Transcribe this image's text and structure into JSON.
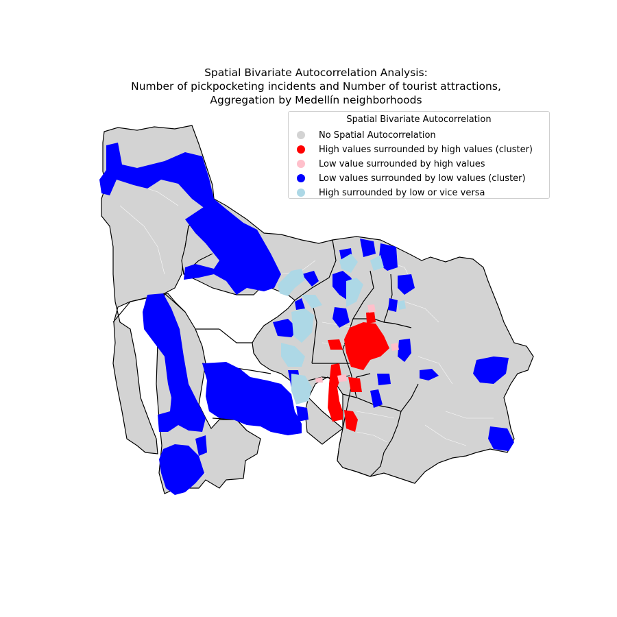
{
  "title": {
    "line1": "Spatial Bivariate Autocorrelation Analysis:",
    "line2": "Number of pickpocketing incidents and Number of tourist attractions,",
    "line3": "Aggregation by Medellín neighborhoods"
  },
  "legend": {
    "title": "Spatial Bivariate Autocorrelation",
    "items": [
      {
        "label": "No Spatial Autocorrelation",
        "color": "#d3d3d3"
      },
      {
        "label": "High values surrounded by high values (cluster)",
        "color": "#ff0000"
      },
      {
        "label": "Low value surrounded by high values",
        "color": "#ffc0cb"
      },
      {
        "label": "Low values surrounded by low values (cluster)",
        "color": "#0000ff"
      },
      {
        "label": "High surrounded by low or vice versa",
        "color": "#add8e6"
      }
    ]
  },
  "colors": {
    "no_autocorrelation": "#d3d3d3",
    "high_high": "#ff0000",
    "low_high": "#ffc0cb",
    "low_low": "#0000ff",
    "high_low": "#add8e6",
    "boundary": "#000000"
  }
}
